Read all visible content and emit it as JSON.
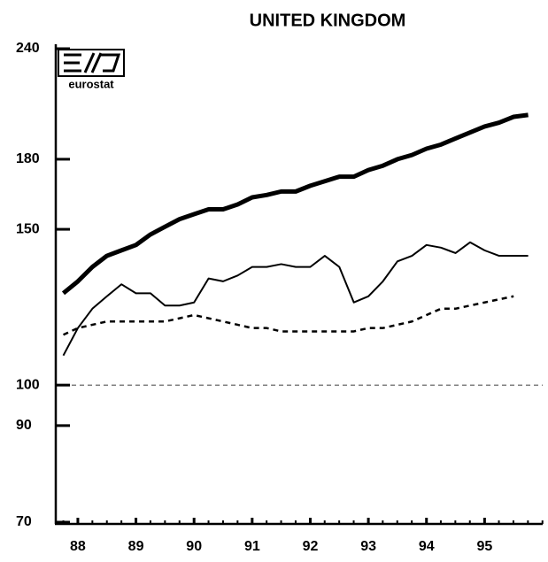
{
  "chart_data": {
    "type": "line",
    "title": "UNITED KINGDOM",
    "logo_text": "eurostat",
    "x": [
      87.75,
      88,
      88.25,
      88.5,
      88.75,
      89,
      89.25,
      89.5,
      89.75,
      90,
      90.25,
      90.5,
      90.75,
      91,
      91.25,
      91.5,
      91.75,
      92,
      92.25,
      92.5,
      92.75,
      93,
      93.25,
      93.5,
      93.75,
      94,
      94.25,
      94.5,
      94.75,
      95,
      95.25,
      95.5,
      95.75
    ],
    "series": [
      {
        "color": "#000000",
        "style": "thick",
        "values": [
          127,
          131,
          136,
          140,
          142,
          144,
          148,
          151,
          154,
          156,
          158,
          158,
          160,
          163,
          164,
          165.5,
          165.5,
          168,
          170,
          172,
          172,
          175,
          177,
          180,
          182,
          185,
          187,
          190,
          193,
          196,
          198,
          201,
          202
        ]
      },
      {
        "color": "#000000",
        "style": "thin",
        "values": [
          108,
          116,
          122,
          126,
          130,
          127,
          127,
          123,
          123,
          124,
          132,
          131,
          133,
          136,
          136,
          137,
          136,
          136,
          140,
          136,
          124,
          126,
          131,
          138,
          140,
          144,
          143,
          141,
          145,
          142,
          140,
          140,
          140
        ]
      },
      {
        "color": "#000000",
        "style": "dashed",
        "values": [
          114,
          116,
          117,
          118,
          118,
          118,
          118,
          118,
          119,
          120,
          119,
          118,
          117,
          116,
          116,
          115,
          115,
          115,
          115,
          115,
          115,
          116,
          116,
          117,
          118,
          120,
          122,
          122,
          123,
          124,
          125,
          126,
          null
        ]
      }
    ],
    "reference_line": 100,
    "xlim": [
      87.62,
      96
    ],
    "xticks": [
      88,
      89,
      90,
      91,
      92,
      93,
      94,
      95
    ],
    "ylim": [
      70,
      240
    ],
    "yticks": [
      70,
      90,
      100,
      150,
      180,
      240
    ],
    "log_scale": true
  }
}
